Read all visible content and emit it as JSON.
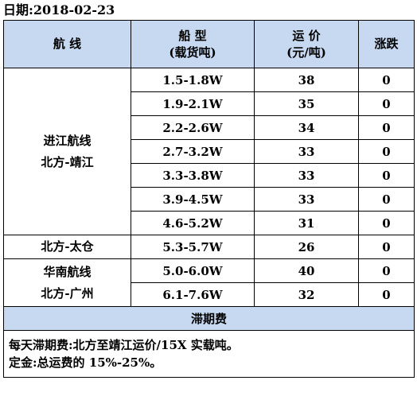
{
  "date": {
    "label": "日期:",
    "value": "2018-02-23"
  },
  "table": {
    "headers": {
      "route": "航 线",
      "ship_type_line1": "船 型",
      "ship_type_line2": "(载货吨)",
      "rate_line1": "运 价",
      "rate_line2": "(元/吨)",
      "change": "涨跌"
    },
    "groups": [
      {
        "route_line1": "进江航线",
        "route_line2": "北方-靖江",
        "rows": [
          {
            "ship_type": "1.5-1.8W",
            "rate": "38",
            "change": "0"
          },
          {
            "ship_type": "1.9-2.1W",
            "rate": "35",
            "change": "0"
          },
          {
            "ship_type": "2.2-2.6W",
            "rate": "34",
            "change": "0"
          },
          {
            "ship_type": "2.7-3.2W",
            "rate": "33",
            "change": "0"
          },
          {
            "ship_type": "3.3-3.8W",
            "rate": "33",
            "change": "0"
          },
          {
            "ship_type": "3.9-4.5W",
            "rate": "33",
            "change": "0"
          },
          {
            "ship_type": "4.6-5.2W",
            "rate": "31",
            "change": "0"
          }
        ]
      },
      {
        "route_line1": "北方-太仓",
        "route_line2": "",
        "rows": [
          {
            "ship_type": "5.3-5.7W",
            "rate": "26",
            "change": "0"
          }
        ]
      },
      {
        "route_line1": "华南航线",
        "route_line2": "北方-广州",
        "rows": [
          {
            "ship_type": "5.0-6.0W",
            "rate": "40",
            "change": "0"
          },
          {
            "ship_type": "6.1-7.6W",
            "rate": "32",
            "change": "0"
          }
        ]
      }
    ],
    "demurrage": {
      "title": "滞期费",
      "note1": "每天滞期费:北方至靖江运价/15X 实载吨。",
      "note2": "定金:总运费的 15%-25%。"
    }
  },
  "colors": {
    "header_bg": "#c6d9f1",
    "border": "#000000",
    "text": "#000000"
  }
}
